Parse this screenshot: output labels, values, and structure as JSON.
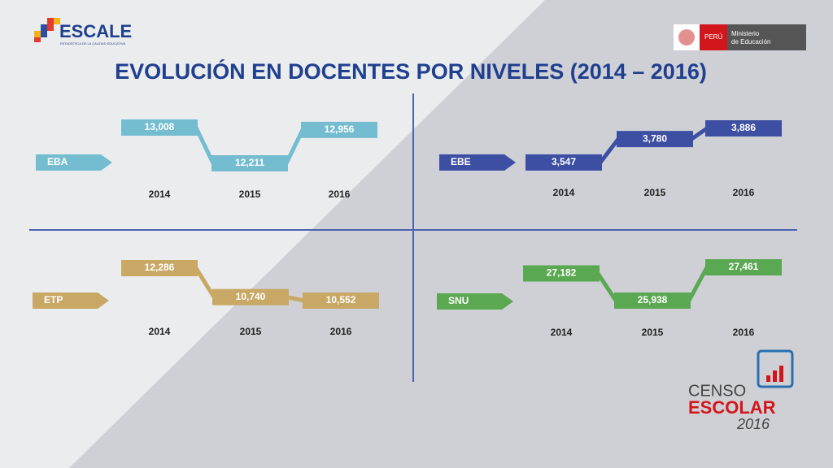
{
  "header": {
    "title": "EVOLUCIÓN EN DOCENTES POR NIVELES (2014 – 2016)",
    "logo": "ESCALE",
    "logo_subtitle": "ESTADÍSTICA DE LA CALIDAD EDUCATIVA",
    "country": "PERÚ",
    "ministry": [
      "Ministerio",
      "de Educación"
    ],
    "census": [
      "CENSO",
      "ESCOLAR",
      "2016"
    ]
  },
  "chart_data": [
    {
      "type": "line",
      "categories": [
        "2014",
        "2015",
        "2016"
      ],
      "series": [
        {
          "name": "EBA",
          "color": "#74bdd0",
          "values": [
            13008,
            12211,
            12956
          ],
          "value_labels": [
            "13,008",
            "12,211",
            "12,956"
          ]
        }
      ]
    },
    {
      "type": "line",
      "categories": [
        "2014",
        "2015",
        "2016"
      ],
      "series": [
        {
          "name": "EBE",
          "color": "#3d4fa3",
          "values": [
            3547,
            3780,
            3886
          ],
          "value_labels": [
            "3,547",
            "3,780",
            "3,886"
          ]
        }
      ]
    },
    {
      "type": "line",
      "categories": [
        "2014",
        "2015",
        "2016"
      ],
      "series": [
        {
          "name": "ETP",
          "color": "#c9a865",
          "values": [
            12286,
            10740,
            10552
          ],
          "value_labels": [
            "12,286",
            "10,740",
            "10,552"
          ]
        }
      ]
    },
    {
      "type": "line",
      "categories": [
        "2014",
        "2015",
        "2016"
      ],
      "series": [
        {
          "name": "SNU",
          "color": "#5aa852",
          "values": [
            27182,
            25938,
            27461
          ],
          "value_labels": [
            "27,182",
            "25,938",
            "27,461"
          ]
        }
      ]
    }
  ]
}
